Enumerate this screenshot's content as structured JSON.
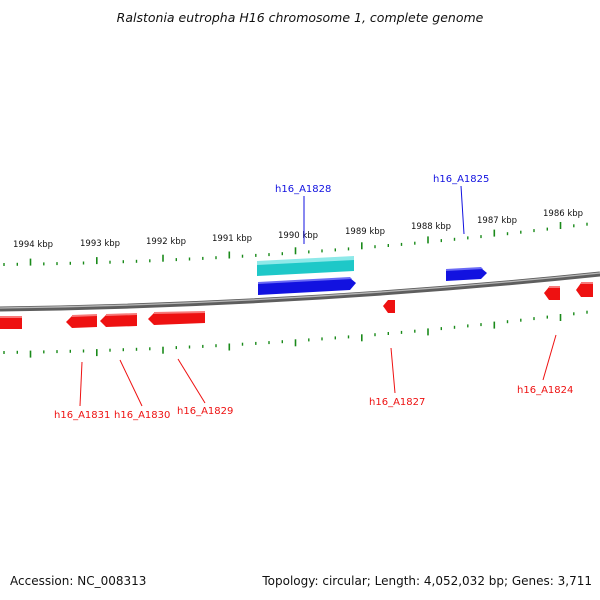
{
  "title": "Ralstonia eutropha H16 chromosome 1, complete genome",
  "footer": {
    "accession": "Accession: NC_008313",
    "stats": "Topology: circular; Length: 4,052,032 bp; Genes: 3,711"
  },
  "colors": {
    "forward_gene": "#1212e0",
    "reverse_gene": "#ee1111",
    "highlight": "#1ec8c8",
    "tick": "#1a8a1a",
    "backbone": "#7a7a7a"
  },
  "scale_labels": [
    "1994 kbp",
    "1993 kbp",
    "1992 kbp",
    "1991 kbp",
    "1990 kbp",
    "1989 kbp",
    "1988 kbp",
    "1987 kbp",
    "1986 kbp"
  ],
  "forward_genes": [
    {
      "label": "h16_A1828"
    },
    {
      "label": "h16_A1825"
    }
  ],
  "reverse_genes": [
    {
      "label": "h16_A1831"
    },
    {
      "label": "h16_A1830"
    },
    {
      "label": "h16_A1829"
    },
    {
      "label": "h16_A1827"
    },
    {
      "label": "h16_A1824"
    }
  ]
}
